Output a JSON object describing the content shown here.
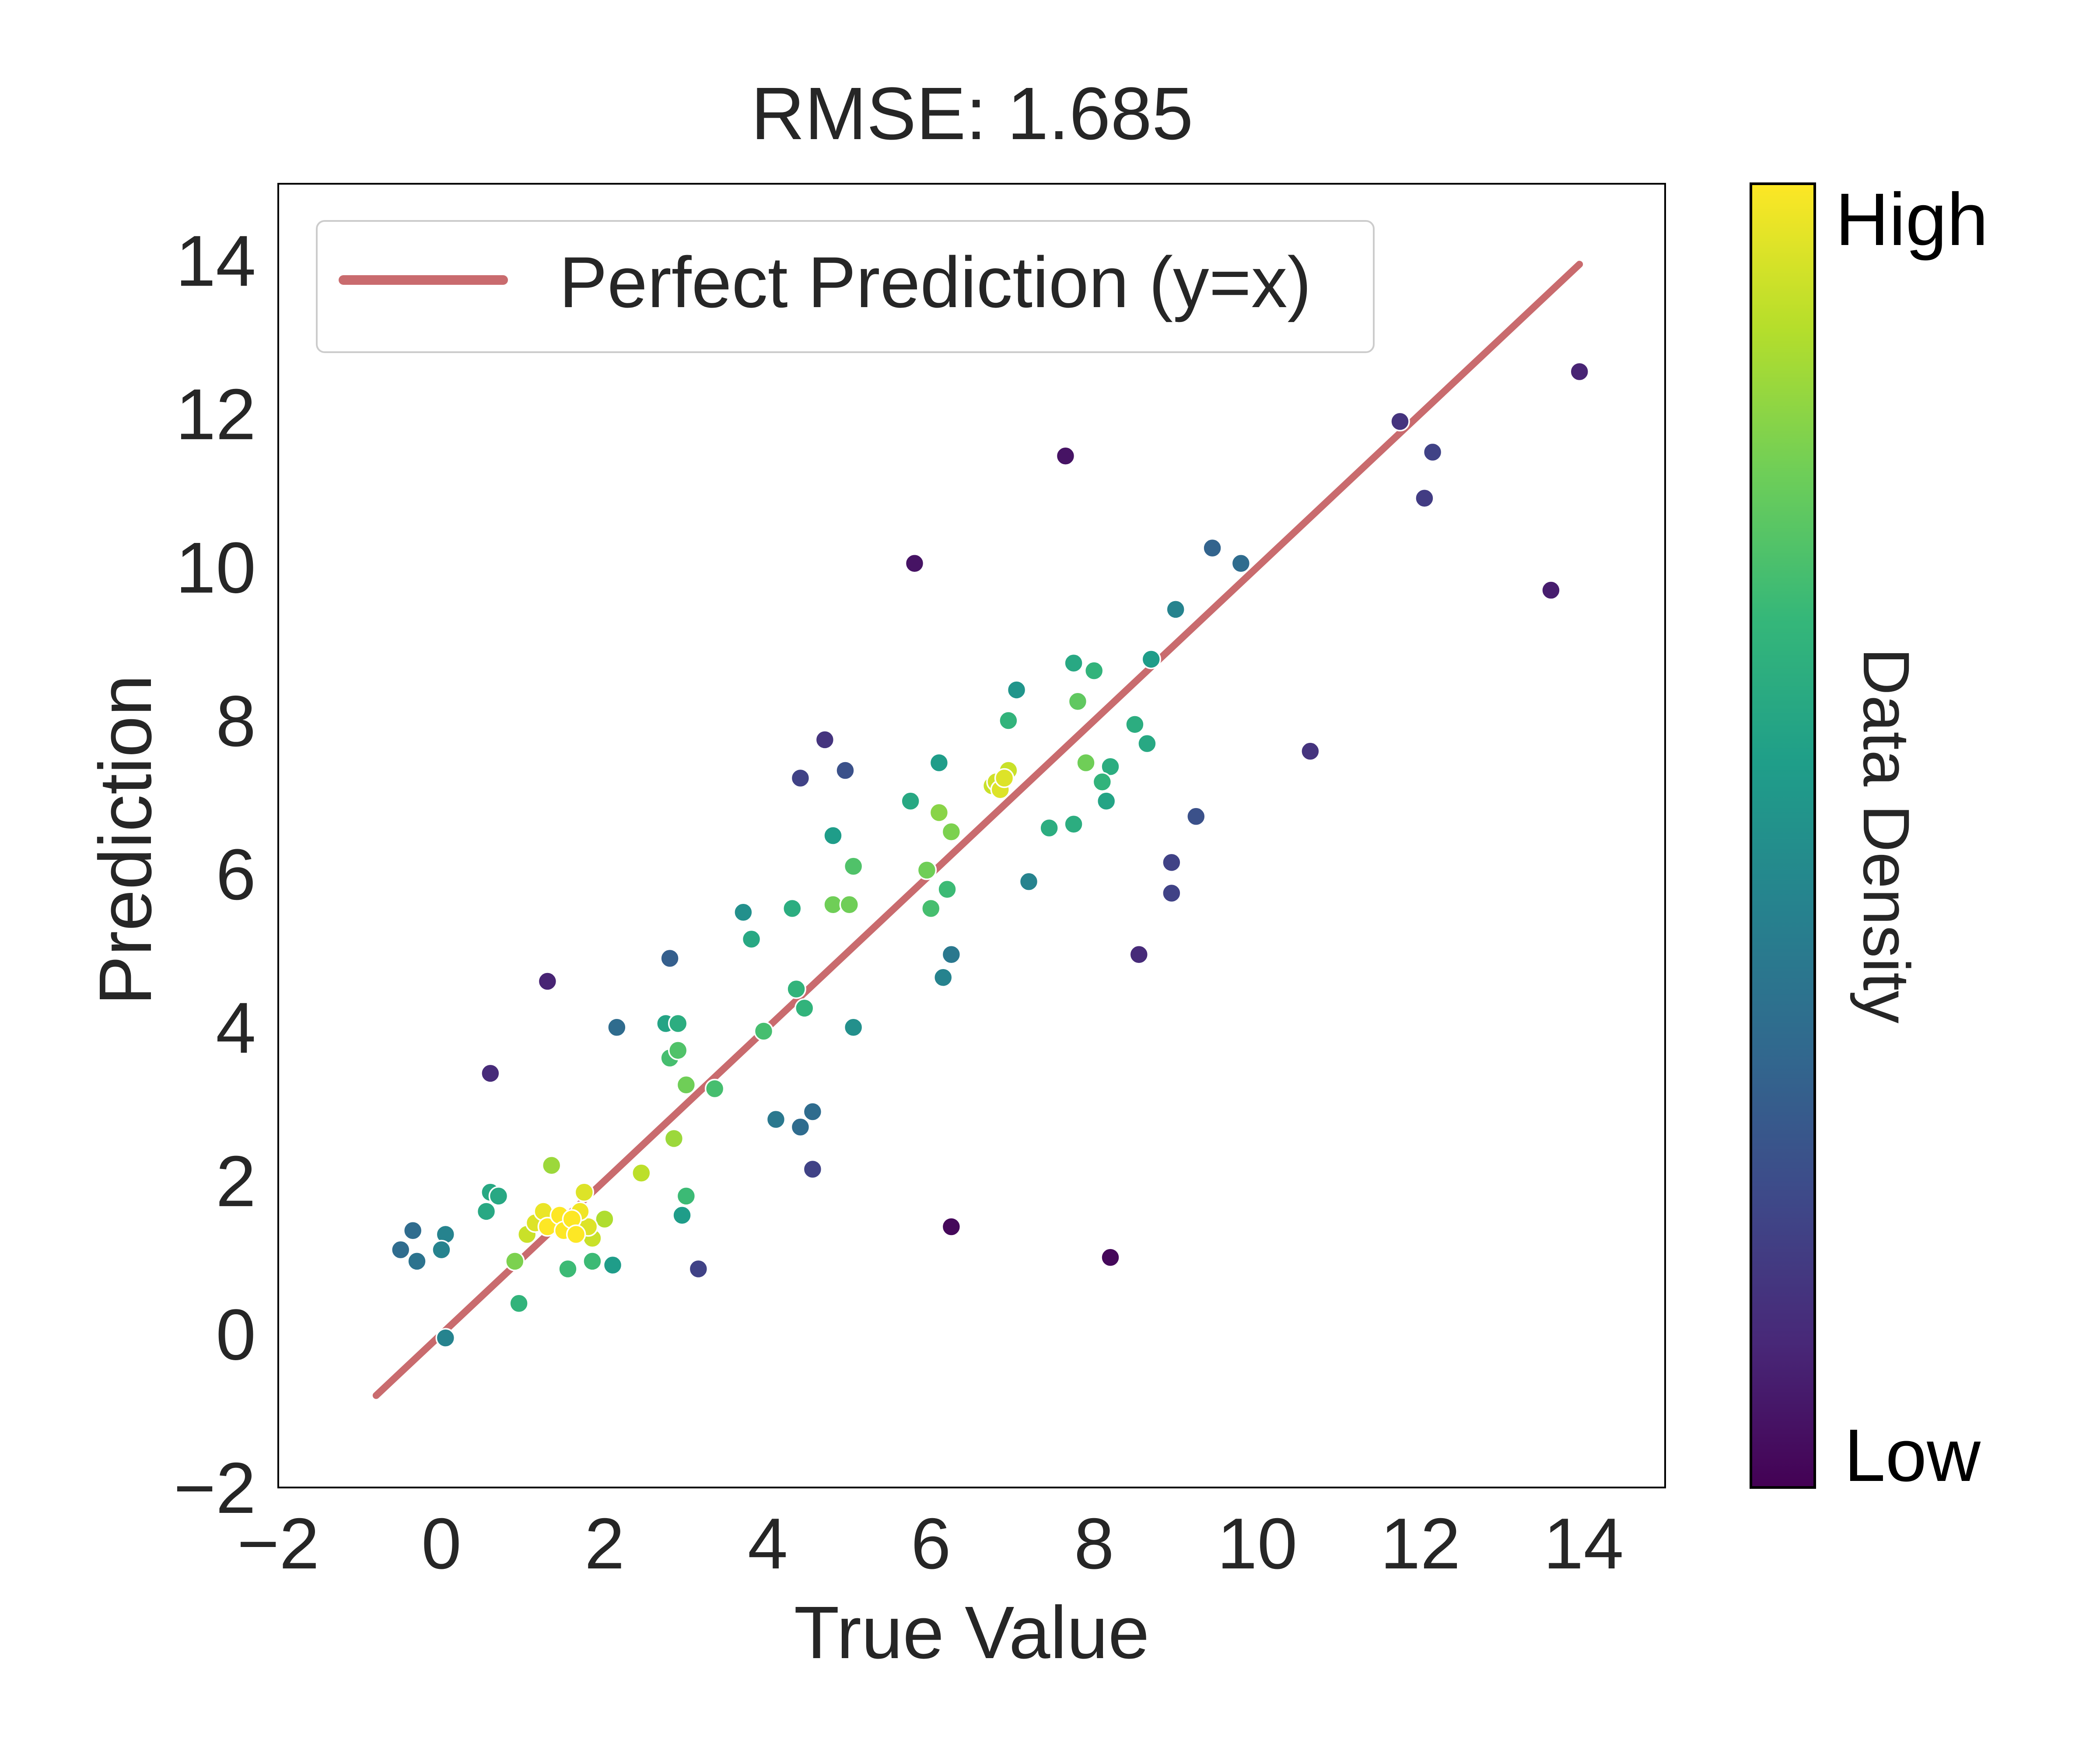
{
  "chart_data": {
    "type": "scatter",
    "title": "RMSE: 1.685",
    "xlabel": "True Value",
    "ylabel": "Prediction",
    "xlim": [
      -2,
      15
    ],
    "ylim": [
      -2,
      15
    ],
    "xticks": [
      -2,
      0,
      2,
      4,
      6,
      8,
      10,
      12,
      14
    ],
    "yticks": [
      -2,
      0,
      2,
      4,
      6,
      8,
      10,
      12,
      14
    ],
    "xtick_labels": [
      "−2",
      "0",
      "2",
      "4",
      "6",
      "8",
      "10",
      "12",
      "14"
    ],
    "ytick_labels": [
      "−2",
      "0",
      "2",
      "4",
      "6",
      "8",
      "10",
      "12",
      "14"
    ],
    "grid": false,
    "legend": {
      "position": "upper-left",
      "entries": [
        "Perfect Prediction (y=x)"
      ]
    },
    "reference_line": {
      "name": "Perfect Prediction (y=x)",
      "x": [
        -0.8,
        13.95
      ],
      "y": [
        -0.8,
        13.95
      ],
      "color": "#c96b6e"
    },
    "colorbar": {
      "label": "Data Density",
      "high_label": "High",
      "low_label": "Low",
      "colormap": "viridis",
      "stops": [
        "#440154",
        "#482878",
        "#3e4989",
        "#31688e",
        "#26828e",
        "#1f9e89",
        "#35b779",
        "#6ece58",
        "#b5de2b",
        "#fde725"
      ]
    },
    "points": [
      {
        "x": -0.5,
        "y": 1.1,
        "d": 0.35
      },
      {
        "x": -0.35,
        "y": 1.35,
        "d": 0.35
      },
      {
        "x": -0.3,
        "y": 0.95,
        "d": 0.38
      },
      {
        "x": 0.05,
        "y": 1.3,
        "d": 0.45
      },
      {
        "x": 0.0,
        "y": 1.1,
        "d": 0.45
      },
      {
        "x": 0.05,
        "y": -0.05,
        "d": 0.45
      },
      {
        "x": 0.6,
        "y": 3.4,
        "d": 0.12
      },
      {
        "x": 0.55,
        "y": 1.6,
        "d": 0.6
      },
      {
        "x": 0.6,
        "y": 1.85,
        "d": 0.6
      },
      {
        "x": 0.7,
        "y": 1.8,
        "d": 0.6
      },
      {
        "x": 0.9,
        "y": 0.95,
        "d": 0.8
      },
      {
        "x": 0.95,
        "y": 0.4,
        "d": 0.65
      },
      {
        "x": 1.05,
        "y": 1.3,
        "d": 0.92
      },
      {
        "x": 1.15,
        "y": 1.45,
        "d": 0.95
      },
      {
        "x": 1.25,
        "y": 1.6,
        "d": 0.97
      },
      {
        "x": 1.3,
        "y": 1.4,
        "d": 1.0
      },
      {
        "x": 1.35,
        "y": 2.2,
        "d": 0.85
      },
      {
        "x": 1.45,
        "y": 1.55,
        "d": 1.0
      },
      {
        "x": 1.5,
        "y": 1.35,
        "d": 1.0
      },
      {
        "x": 1.55,
        "y": 0.85,
        "d": 0.68
      },
      {
        "x": 1.6,
        "y": 1.5,
        "d": 1.0
      },
      {
        "x": 1.65,
        "y": 1.3,
        "d": 1.0
      },
      {
        "x": 1.7,
        "y": 1.6,
        "d": 0.98
      },
      {
        "x": 1.75,
        "y": 1.85,
        "d": 0.95
      },
      {
        "x": 1.8,
        "y": 1.4,
        "d": 0.95
      },
      {
        "x": 1.85,
        "y": 1.25,
        "d": 0.92
      },
      {
        "x": 1.85,
        "y": 0.95,
        "d": 0.68
      },
      {
        "x": 2.0,
        "y": 1.5,
        "d": 0.88
      },
      {
        "x": 2.1,
        "y": 0.9,
        "d": 0.55
      },
      {
        "x": 1.3,
        "y": 4.6,
        "d": 0.1
      },
      {
        "x": 2.15,
        "y": 4.0,
        "d": 0.35
      },
      {
        "x": 2.45,
        "y": 2.1,
        "d": 0.9
      },
      {
        "x": 2.8,
        "y": 4.9,
        "d": 0.3
      },
      {
        "x": 2.75,
        "y": 4.05,
        "d": 0.58
      },
      {
        "x": 2.8,
        "y": 3.6,
        "d": 0.7
      },
      {
        "x": 2.9,
        "y": 4.05,
        "d": 0.62
      },
      {
        "x": 2.9,
        "y": 3.7,
        "d": 0.72
      },
      {
        "x": 2.85,
        "y": 2.55,
        "d": 0.85
      },
      {
        "x": 3.0,
        "y": 3.25,
        "d": 0.78
      },
      {
        "x": 3.0,
        "y": 1.8,
        "d": 0.68
      },
      {
        "x": 2.95,
        "y": 1.55,
        "d": 0.55
      },
      {
        "x": 3.15,
        "y": 0.85,
        "d": 0.2
      },
      {
        "x": 3.35,
        "y": 3.2,
        "d": 0.7
      },
      {
        "x": 3.7,
        "y": 5.5,
        "d": 0.5
      },
      {
        "x": 3.8,
        "y": 5.15,
        "d": 0.6
      },
      {
        "x": 3.95,
        "y": 3.95,
        "d": 0.7
      },
      {
        "x": 4.1,
        "y": 2.8,
        "d": 0.4
      },
      {
        "x": 4.3,
        "y": 5.55,
        "d": 0.62
      },
      {
        "x": 4.35,
        "y": 4.5,
        "d": 0.65
      },
      {
        "x": 4.45,
        "y": 4.25,
        "d": 0.65
      },
      {
        "x": 4.4,
        "y": 7.25,
        "d": 0.2
      },
      {
        "x": 4.4,
        "y": 2.7,
        "d": 0.35
      },
      {
        "x": 4.55,
        "y": 2.9,
        "d": 0.35
      },
      {
        "x": 4.55,
        "y": 2.15,
        "d": 0.2
      },
      {
        "x": 4.7,
        "y": 7.75,
        "d": 0.15
      },
      {
        "x": 4.8,
        "y": 6.5,
        "d": 0.55
      },
      {
        "x": 4.8,
        "y": 5.6,
        "d": 0.78
      },
      {
        "x": 4.95,
        "y": 7.35,
        "d": 0.25
      },
      {
        "x": 5.0,
        "y": 5.6,
        "d": 0.78
      },
      {
        "x": 5.05,
        "y": 6.1,
        "d": 0.72
      },
      {
        "x": 5.05,
        "y": 4.0,
        "d": 0.5
      },
      {
        "x": 5.75,
        "y": 6.95,
        "d": 0.6
      },
      {
        "x": 5.8,
        "y": 10.05,
        "d": 0.05
      },
      {
        "x": 5.95,
        "y": 6.05,
        "d": 0.78
      },
      {
        "x": 6.0,
        "y": 5.55,
        "d": 0.7
      },
      {
        "x": 6.1,
        "y": 7.45,
        "d": 0.55
      },
      {
        "x": 6.1,
        "y": 6.8,
        "d": 0.82
      },
      {
        "x": 6.15,
        "y": 4.65,
        "d": 0.45
      },
      {
        "x": 6.2,
        "y": 5.8,
        "d": 0.68
      },
      {
        "x": 6.25,
        "y": 6.55,
        "d": 0.8
      },
      {
        "x": 6.25,
        "y": 4.95,
        "d": 0.4
      },
      {
        "x": 6.25,
        "y": 1.4,
        "d": 0.02
      },
      {
        "x": 6.75,
        "y": 7.15,
        "d": 0.92
      },
      {
        "x": 6.8,
        "y": 7.2,
        "d": 0.93
      },
      {
        "x": 6.85,
        "y": 7.1,
        "d": 0.95
      },
      {
        "x": 6.9,
        "y": 7.25,
        "d": 0.95
      },
      {
        "x": 6.95,
        "y": 7.35,
        "d": 0.92
      },
      {
        "x": 6.95,
        "y": 8.0,
        "d": 0.65
      },
      {
        "x": 7.05,
        "y": 8.4,
        "d": 0.52
      },
      {
        "x": 7.2,
        "y": 5.9,
        "d": 0.45
      },
      {
        "x": 7.45,
        "y": 6.6,
        "d": 0.62
      },
      {
        "x": 7.65,
        "y": 11.45,
        "d": 0.05
      },
      {
        "x": 7.75,
        "y": 8.75,
        "d": 0.6
      },
      {
        "x": 7.75,
        "y": 6.65,
        "d": 0.62
      },
      {
        "x": 7.8,
        "y": 8.25,
        "d": 0.75
      },
      {
        "x": 7.9,
        "y": 7.45,
        "d": 0.78
      },
      {
        "x": 8.0,
        "y": 8.65,
        "d": 0.65
      },
      {
        "x": 8.1,
        "y": 7.2,
        "d": 0.65
      },
      {
        "x": 8.15,
        "y": 6.95,
        "d": 0.58
      },
      {
        "x": 8.2,
        "y": 7.4,
        "d": 0.62
      },
      {
        "x": 8.2,
        "y": 1.0,
        "d": 0.02
      },
      {
        "x": 8.5,
        "y": 7.95,
        "d": 0.62
      },
      {
        "x": 8.55,
        "y": 4.95,
        "d": 0.12
      },
      {
        "x": 8.65,
        "y": 7.7,
        "d": 0.6
      },
      {
        "x": 8.7,
        "y": 8.8,
        "d": 0.55
      },
      {
        "x": 8.95,
        "y": 6.15,
        "d": 0.2
      },
      {
        "x": 8.95,
        "y": 5.75,
        "d": 0.2
      },
      {
        "x": 9.0,
        "y": 9.45,
        "d": 0.45
      },
      {
        "x": 9.25,
        "y": 6.75,
        "d": 0.25
      },
      {
        "x": 9.45,
        "y": 10.25,
        "d": 0.32
      },
      {
        "x": 9.8,
        "y": 10.05,
        "d": 0.35
      },
      {
        "x": 10.65,
        "y": 7.6,
        "d": 0.15
      },
      {
        "x": 11.75,
        "y": 11.9,
        "d": 0.15
      },
      {
        "x": 12.05,
        "y": 10.9,
        "d": 0.18
      },
      {
        "x": 12.15,
        "y": 11.5,
        "d": 0.2
      },
      {
        "x": 13.6,
        "y": 9.7,
        "d": 0.08
      },
      {
        "x": 13.95,
        "y": 12.55,
        "d": 0.1
      }
    ]
  }
}
